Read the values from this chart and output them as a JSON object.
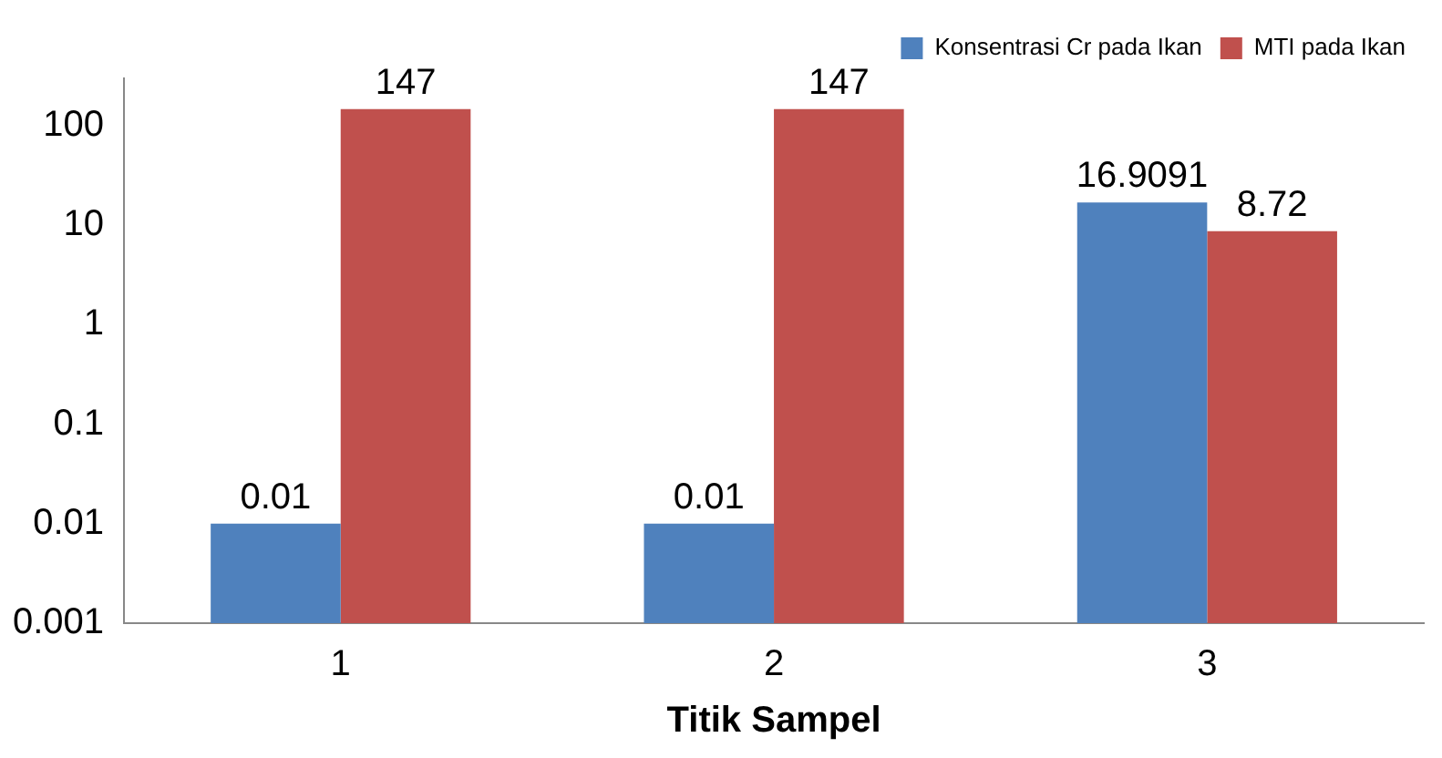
{
  "chart_data": {
    "type": "bar",
    "xlabel": "Titik Sampel",
    "categories": [
      "1",
      "2",
      "3"
    ],
    "series": [
      {
        "name": "Konsentrasi Cr pada Ikan",
        "color": "#4f81bd",
        "values": [
          0.01,
          0.01,
          16.9091
        ]
      },
      {
        "name": "MTI pada Ikan",
        "color": "#c0504d",
        "values": [
          147,
          147,
          8.72
        ]
      }
    ],
    "log": "y",
    "ylim": [
      0.001,
      300
    ],
    "yticks": [
      0.001,
      0.01,
      0.1,
      1,
      10,
      100
    ],
    "grid": false,
    "legend": "top right",
    "data_labels": true
  }
}
